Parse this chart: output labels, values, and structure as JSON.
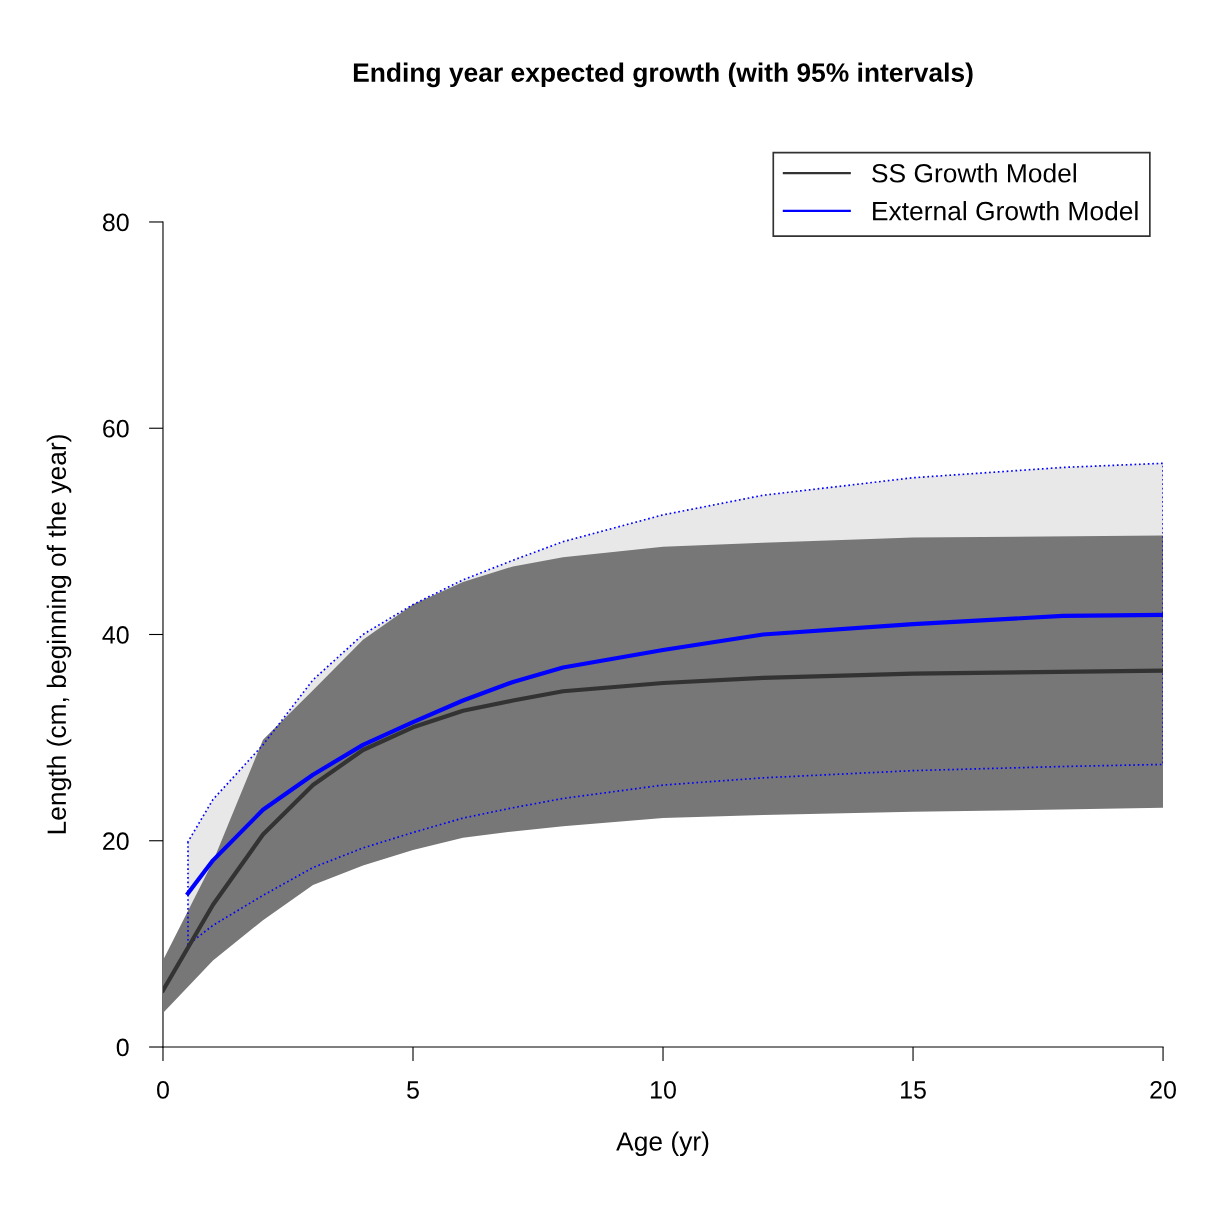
{
  "chart_data": {
    "type": "line",
    "title": "Ending year expected growth (with 95% intervals)",
    "xlabel": "Age (yr)",
    "ylabel": "Length (cm, beginning of the year)",
    "xlim": [
      0,
      20
    ],
    "ylim": [
      0,
      80
    ],
    "xticks": [
      0,
      5,
      10,
      15,
      20
    ],
    "yticks": [
      0,
      20,
      40,
      60,
      80
    ],
    "grid": false,
    "legend": "top right",
    "marker": "none",
    "line_style": "solid",
    "series": [
      {
        "name": "SS Growth Model",
        "color": "#333333",
        "x": [
          0,
          1,
          2,
          3,
          4,
          5,
          6,
          7,
          8,
          10,
          12,
          15,
          20
        ],
        "values": [
          5.5,
          13.8,
          20.6,
          25.4,
          28.8,
          31.0,
          32.6,
          33.6,
          34.5,
          35.3,
          35.8,
          36.2,
          36.5
        ],
        "lower": [
          3.3,
          8.4,
          12.3,
          15.7,
          17.6,
          19.1,
          20.3,
          20.9,
          21.4,
          22.2,
          22.5,
          22.8,
          23.2
        ],
        "upper": [
          8.4,
          18.0,
          29.8,
          34.6,
          39.5,
          42.9,
          45.1,
          46.6,
          47.5,
          48.5,
          48.9,
          49.4,
          49.6
        ]
      },
      {
        "name": "External Growth Model",
        "color": "#0000ff",
        "x": [
          0.5,
          1,
          2,
          3,
          4,
          5,
          6,
          7,
          8,
          10,
          12,
          15,
          18,
          20
        ],
        "values": [
          14.9,
          18.1,
          23.0,
          26.4,
          29.3,
          31.5,
          33.6,
          35.4,
          36.8,
          38.5,
          40.0,
          41.0,
          41.8,
          41.9
        ],
        "lower": [
          9.9,
          11.8,
          14.7,
          17.4,
          19.3,
          20.8,
          22.2,
          23.2,
          24.1,
          25.4,
          26.1,
          26.8,
          27.2,
          27.4
        ],
        "upper": [
          19.9,
          24.0,
          29.3,
          35.6,
          40.0,
          42.9,
          45.3,
          47.2,
          49.0,
          51.6,
          53.5,
          55.2,
          56.2,
          56.6
        ]
      }
    ]
  }
}
